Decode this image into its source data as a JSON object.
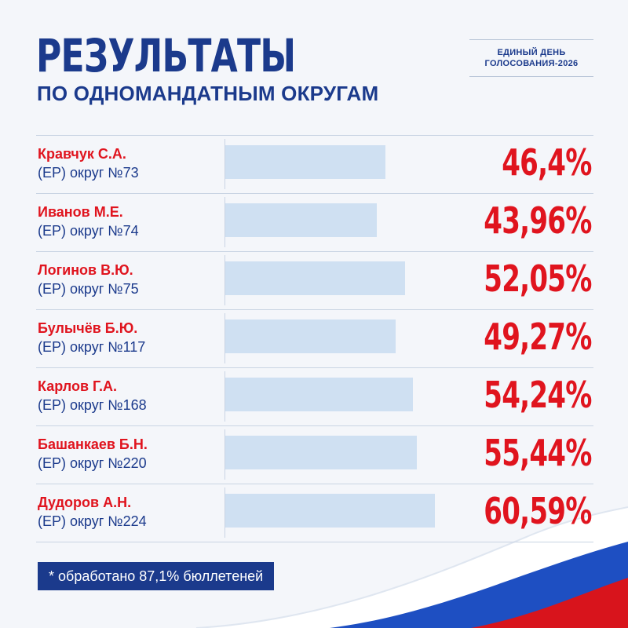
{
  "header": {
    "title": "РЕЗУЛЬТАТЫ",
    "subtitle": "ПО ОДНОМАНДАТНЫМ ОКРУГАМ",
    "badge_line1": "ЕДИНЫЙ ДЕНЬ",
    "badge_line2": "ГОЛОСОВАНИЯ-2026"
  },
  "footnote": "* обработано 87,1% бюллетеней",
  "colors": {
    "title_blue": "#1b3a8c",
    "accent_red": "#e0141e",
    "bar_fill": "#cfe0f2",
    "footnote_bg": "#1b3a8c",
    "flag_white": "#ffffff",
    "flag_blue": "#1e4fc2",
    "flag_red": "#d8141c"
  },
  "chart_data": {
    "type": "bar",
    "orientation": "horizontal",
    "title": "РЕЗУЛЬТАТЫ ПО ОДНОМАНДАТНЫМ ОКРУГАМ",
    "xlim": [
      0,
      100
    ],
    "grid": false,
    "legend": "none",
    "items": [
      {
        "name": "Кравчук С.А.",
        "district": "(ЕР) округ №73",
        "value": 46.4,
        "label": "46,4%"
      },
      {
        "name": "Иванов М.Е.",
        "district": "(ЕР) округ №74",
        "value": 43.96,
        "label": "43,96%"
      },
      {
        "name": "Логинов В.Ю.",
        "district": "(ЕР) округ №75",
        "value": 52.05,
        "label": "52,05%"
      },
      {
        "name": "Булычёв Б.Ю.",
        "district": "(ЕР) округ №117",
        "value": 49.27,
        "label": "49,27%"
      },
      {
        "name": "Карлов Г.А.",
        "district": "(ЕР) округ №168",
        "value": 54.24,
        "label": "54,24%"
      },
      {
        "name": "Башанкаев Б.Н.",
        "district": "(ЕР) округ №220",
        "value": 55.44,
        "label": "55,44%"
      },
      {
        "name": "Дудоров А.Н.",
        "district": "(ЕР) округ №224",
        "value": 60.59,
        "label": "60,59%"
      }
    ]
  }
}
